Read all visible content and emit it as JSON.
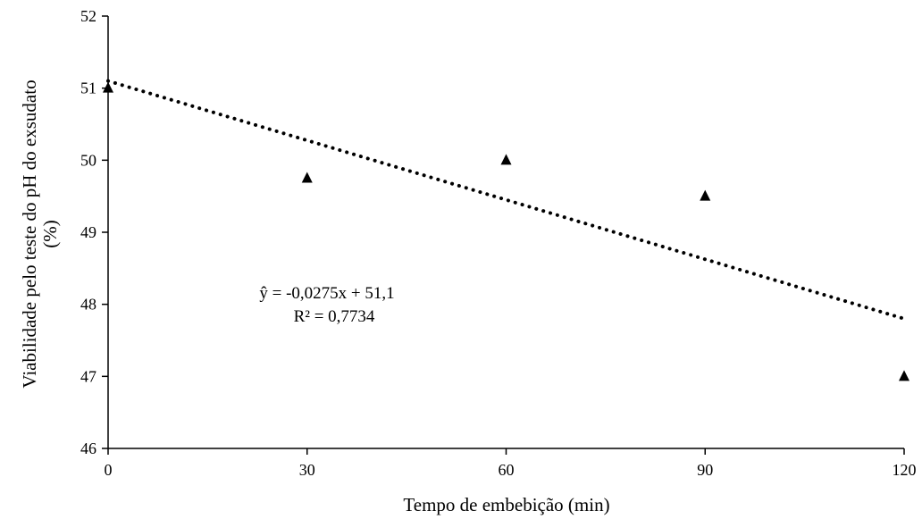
{
  "chart_data": {
    "type": "scatter",
    "xlabel": "Tempo de embebição (min)",
    "ylabel_lines": [
      "Viabilidade pelo teste do pH do exsudato",
      "(%)"
    ],
    "x_ticks": [
      0,
      30,
      60,
      90,
      120
    ],
    "y_ticks": [
      46,
      47,
      48,
      49,
      50,
      51,
      52
    ],
    "x_tick_labels": [
      "0",
      "30",
      "60",
      "90",
      "120"
    ],
    "y_tick_labels": [
      "46",
      "47",
      "48",
      "49",
      "50",
      "51",
      "52"
    ],
    "xlim": [
      0,
      120
    ],
    "ylim": [
      46,
      52
    ],
    "grid": false,
    "legend": "none",
    "marker": "triangle",
    "marker_color": "#000000",
    "series": [
      {
        "points": [
          {
            "x": 0,
            "y": 51.0
          },
          {
            "x": 30,
            "y": 49.75
          },
          {
            "x": 60,
            "y": 50.0
          },
          {
            "x": 90,
            "y": 49.5
          },
          {
            "x": 120,
            "y": 47.0
          }
        ]
      }
    ],
    "trendline": {
      "style": "dotted",
      "color": "#000000",
      "slope": -0.0275,
      "intercept": 51.1,
      "x_range": [
        0,
        120
      ]
    },
    "annotations": {
      "equation": "ŷ = -0,0275x + 51,1",
      "r_squared": "R² = 0,7734"
    }
  }
}
